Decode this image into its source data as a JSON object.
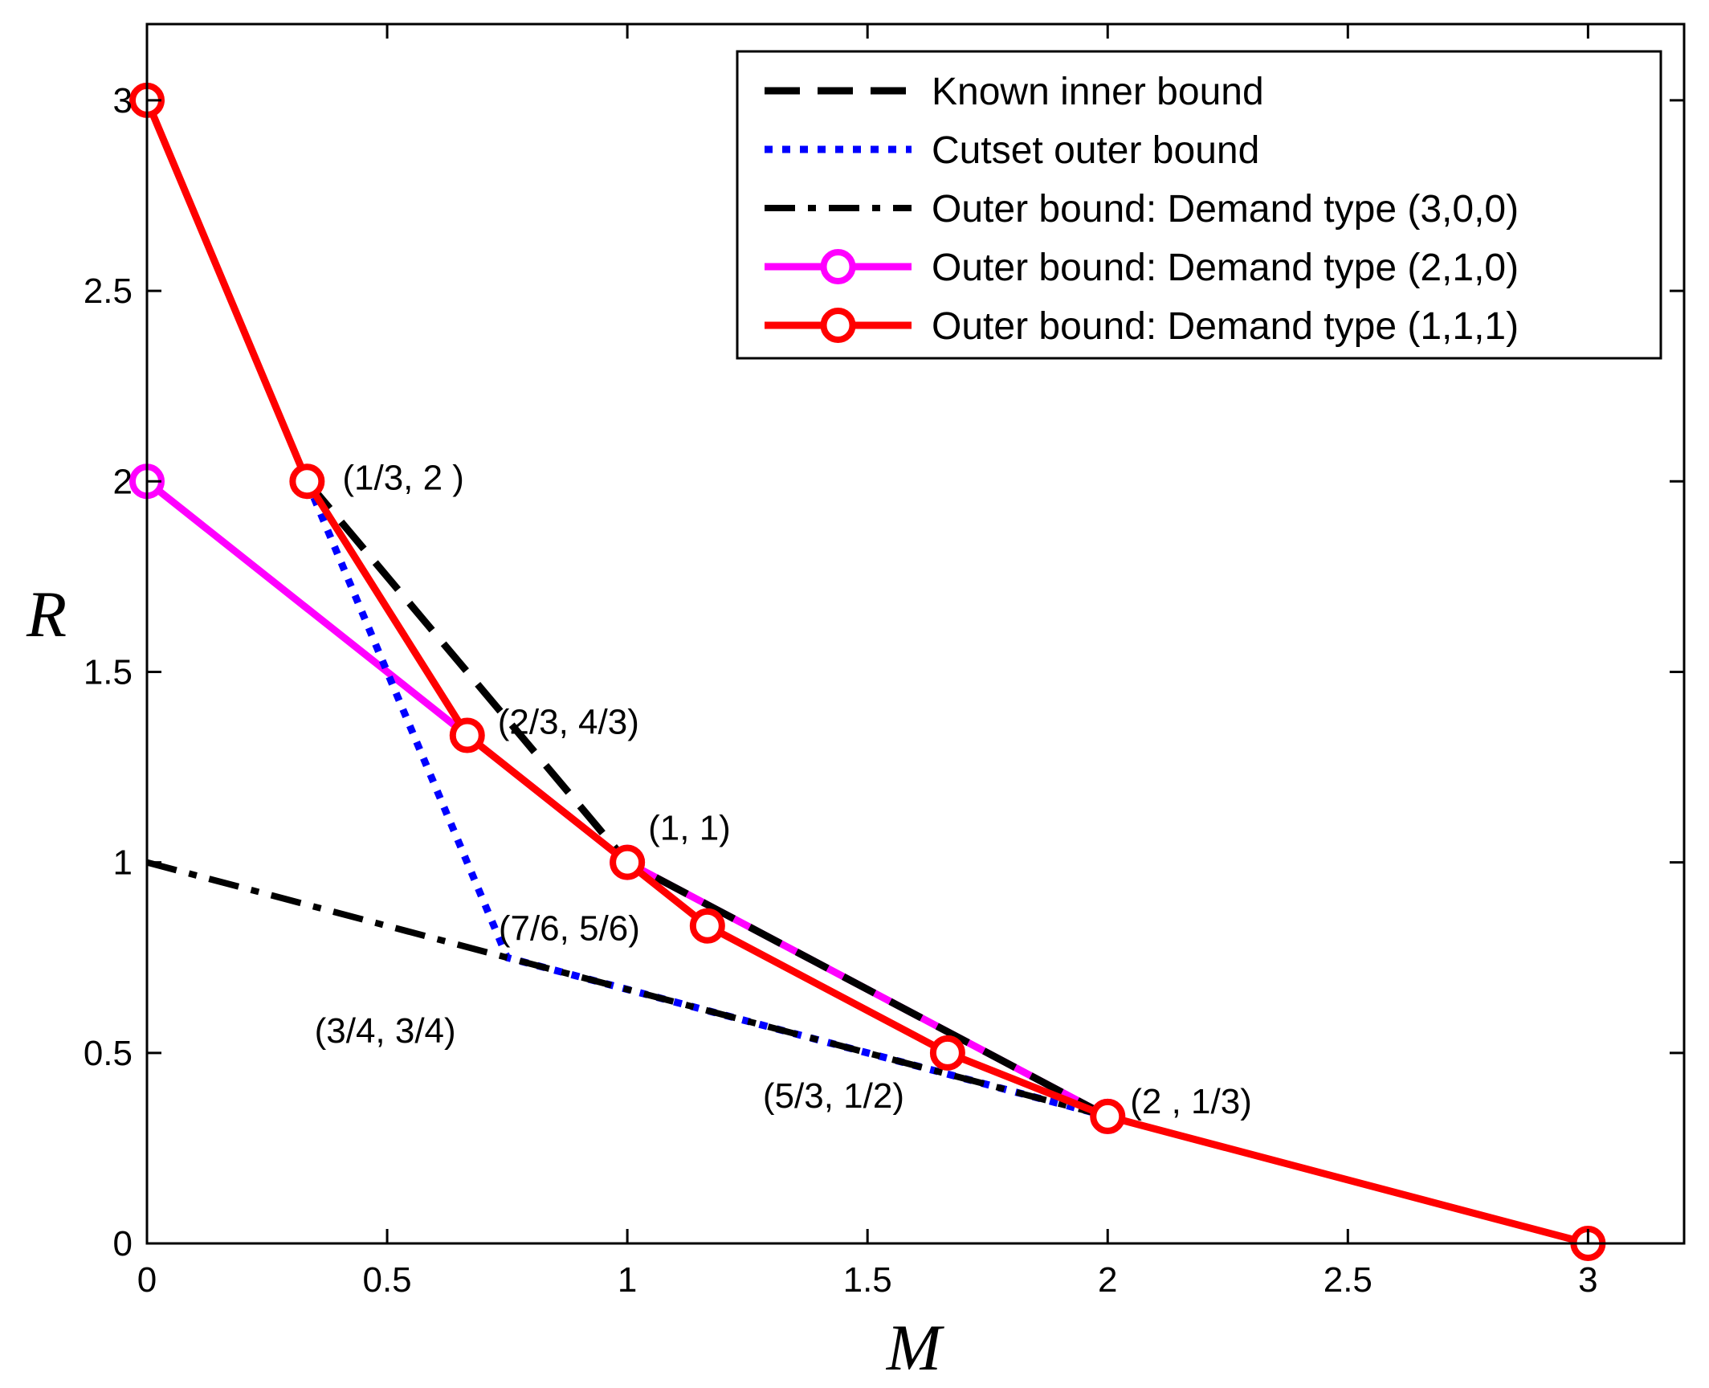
{
  "chart_data": {
    "type": "line",
    "title": "",
    "xlabel": "M",
    "ylabel": "R",
    "xlim": [
      0,
      3.2
    ],
    "ylim": [
      0,
      3.2
    ],
    "xticks": [
      0,
      0.5,
      1,
      1.5,
      2,
      2.5,
      3
    ],
    "xtick_labels": [
      "0",
      "0.5",
      "1",
      "1.5",
      "2",
      "2.5",
      "3"
    ],
    "yticks": [
      0,
      0.5,
      1,
      1.5,
      2,
      2.5,
      3
    ],
    "ytick_labels": [
      "0",
      "0.5",
      "1",
      "1.5",
      "2",
      "2.5",
      "3"
    ],
    "grid": false,
    "legend_position": "top-right",
    "series": [
      {
        "name": "Known inner bound",
        "color": "#000000",
        "style": "dashed",
        "marker": "none",
        "x": [
          0.3333,
          1,
          2
        ],
        "y": [
          2,
          1,
          0.3333
        ]
      },
      {
        "name": "Cutset outer bound",
        "color": "#0000ff",
        "style": "dotted",
        "marker": "none",
        "x": [
          0.3333,
          0.75,
          1.6667,
          2
        ],
        "y": [
          2,
          0.75,
          0.4444,
          0.3333
        ]
      },
      {
        "name": "Outer bound: Demand type (3,0,0)",
        "color": "#000000",
        "style": "dashdot",
        "marker": "none",
        "x": [
          0,
          2,
          3
        ],
        "y": [
          1,
          0.3333,
          0
        ]
      },
      {
        "name": "Outer bound: Demand type (2,1,0)",
        "color": "#ff00ff",
        "style": "solid",
        "marker": "circle",
        "x": [
          0,
          1,
          2
        ],
        "y": [
          2,
          1,
          0.3333
        ]
      },
      {
        "name": "Outer bound: Demand type (1,1,1)",
        "color": "#ff0000",
        "style": "solid",
        "marker": "circle",
        "x": [
          0,
          0.3333,
          0.6667,
          1,
          1.1667,
          1.6667,
          2,
          3
        ],
        "y": [
          3,
          2,
          1.3333,
          1,
          0.8333,
          0.5,
          0.3333,
          0
        ]
      }
    ],
    "annotations": [
      {
        "text": "(1/3, 2  )",
        "x": 0.3333,
        "y": 2
      },
      {
        "text": "(2/3, 4/3)",
        "x": 0.6667,
        "y": 1.3333
      },
      {
        "text": "(1, 1)",
        "x": 1,
        "y": 1
      },
      {
        "text": "(7/6, 5/6)",
        "x": 1.1667,
        "y": 0.8333
      },
      {
        "text": "(3/4, 3/4)",
        "x": 0.75,
        "y": 0.75
      },
      {
        "text": "(5/3, 1/2)",
        "x": 1.6667,
        "y": 0.5
      },
      {
        "text": "(2  , 1/3)",
        "x": 2,
        "y": 0.3333
      }
    ]
  }
}
